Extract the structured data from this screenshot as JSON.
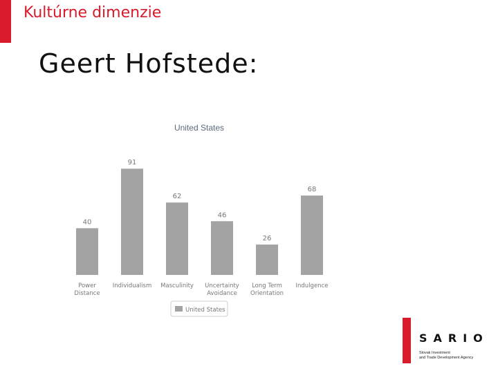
{
  "header": {
    "section_title": "Kultúrne dimenzie",
    "slide_title": "Geert Hofstede:"
  },
  "colors": {
    "accent": "#d71b2b",
    "bar": "#a3a3a3",
    "label": "#777777",
    "title": "#5a6a7a"
  },
  "chart_data": {
    "type": "bar",
    "title": "United States",
    "categories": [
      [
        "Power",
        "Distance"
      ],
      [
        "Individualism"
      ],
      [
        "Masculinity"
      ],
      [
        "Uncertainty",
        "Avoidance"
      ],
      [
        "Long Term",
        "Orientation"
      ],
      [
        "Indulgence"
      ]
    ],
    "series": [
      {
        "name": "United States",
        "values": [
          40,
          91,
          62,
          46,
          26,
          68
        ]
      }
    ],
    "ylim": [
      0,
      100
    ],
    "grid": false,
    "legend": "bottom"
  },
  "logo": {
    "name": "SARIO",
    "tagline_line1": "Slovak Investment",
    "tagline_line2": "and Trade Development Agency"
  }
}
